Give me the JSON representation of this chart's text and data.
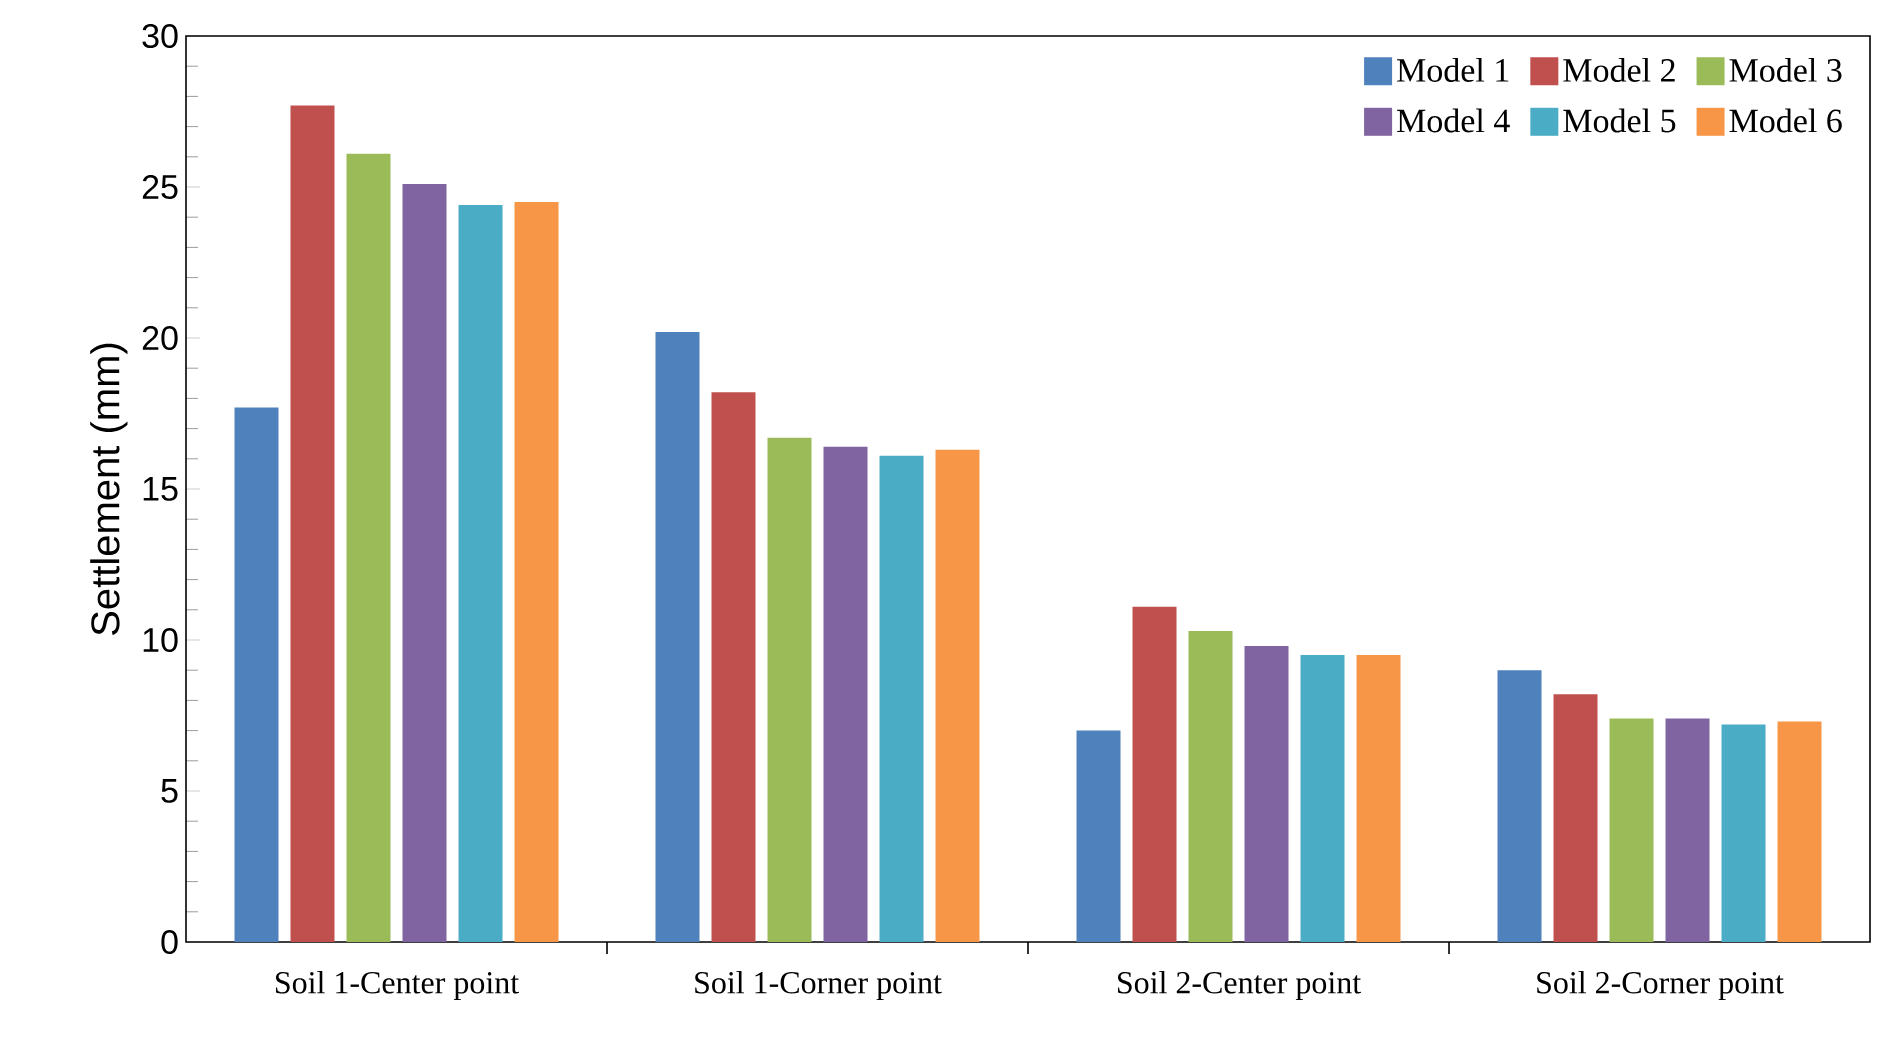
{
  "chart_data": {
    "type": "bar",
    "ylabel": "Settlement (mm)",
    "categories": [
      "Soil 1-Center point",
      "Soil 1-Corner point",
      "Soil 2-Center point",
      "Soil 2-Corner point"
    ],
    "series": [
      {
        "name": "Model 1",
        "color": "#4f81bd",
        "values": [
          17.7,
          20.2,
          7.0,
          9.0
        ]
      },
      {
        "name": "Model 2",
        "color": "#c0504d",
        "values": [
          27.7,
          18.2,
          11.1,
          8.2
        ]
      },
      {
        "name": "Model 3",
        "color": "#9bbb59",
        "values": [
          26.1,
          16.7,
          10.3,
          7.4
        ]
      },
      {
        "name": "Model 4",
        "color": "#8064a2",
        "values": [
          25.1,
          16.4,
          9.8,
          7.4
        ]
      },
      {
        "name": "Model 5",
        "color": "#4bacc6",
        "values": [
          24.4,
          16.1,
          9.5,
          7.2
        ]
      },
      {
        "name": "Model 6",
        "color": "#f79646",
        "values": [
          24.5,
          16.3,
          9.5,
          7.3
        ]
      }
    ],
    "ylim": [
      0,
      30
    ],
    "yticks": [
      0,
      5,
      10,
      15,
      20,
      25,
      30
    ],
    "legend": "top right",
    "grid": false
  }
}
